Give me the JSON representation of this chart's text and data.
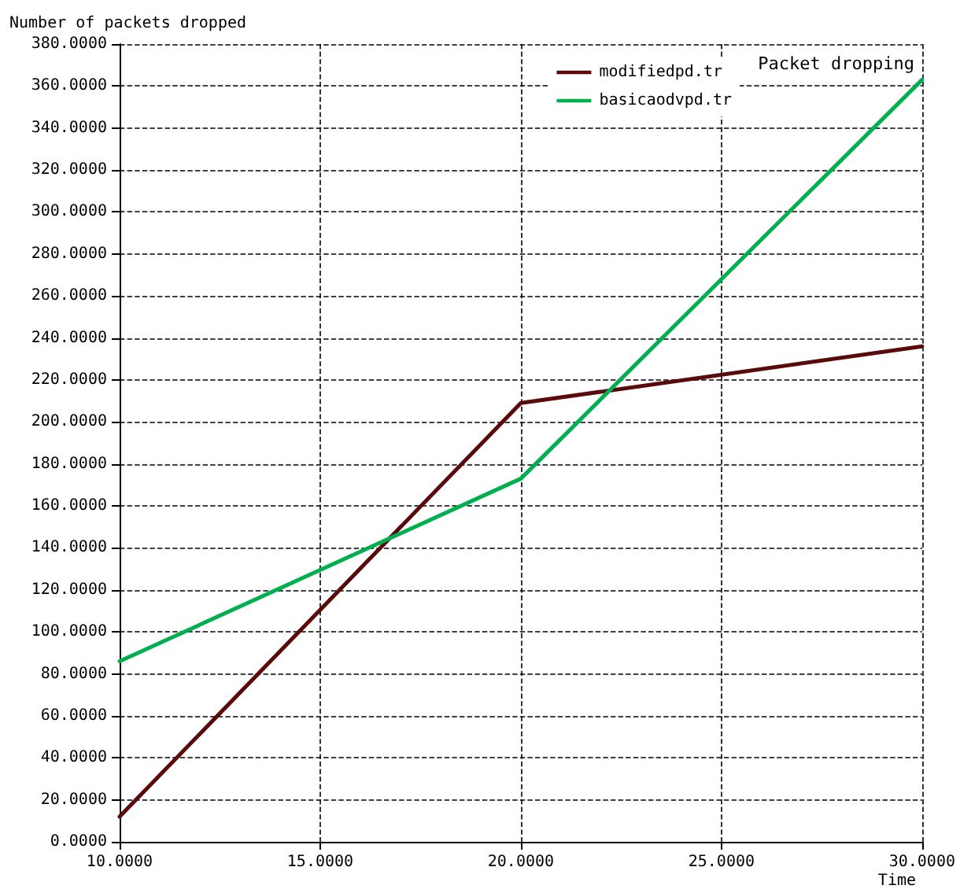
{
  "chart_data": {
    "type": "line",
    "title": "Packet dropping",
    "xlabel": "Time",
    "ylabel": "Number of packets dropped",
    "x": [
      10,
      20,
      30
    ],
    "series": [
      {
        "name": "modifiedpd.tr",
        "color": "#5a0a0a",
        "values": [
          12,
          209,
          236
        ]
      },
      {
        "name": "basicaodvpd.tr",
        "color": "#00b04f",
        "values": [
          86,
          173,
          363
        ]
      }
    ],
    "xlim": [
      10,
      30
    ],
    "xticks": [
      {
        "value": 10,
        "label": "10.0000"
      },
      {
        "value": 15,
        "label": "15.0000"
      },
      {
        "value": 20,
        "label": "20.0000"
      },
      {
        "value": 25,
        "label": "25.0000"
      },
      {
        "value": 30,
        "label": "30.0000"
      }
    ],
    "ylim": [
      0,
      380
    ],
    "yticks": [
      {
        "value": 0,
        "label": "0.0000"
      },
      {
        "value": 20,
        "label": "20.0000"
      },
      {
        "value": 40,
        "label": "40.0000"
      },
      {
        "value": 60,
        "label": "60.0000"
      },
      {
        "value": 80,
        "label": "80.0000"
      },
      {
        "value": 100,
        "label": "100.0000"
      },
      {
        "value": 120,
        "label": "120.0000"
      },
      {
        "value": 140,
        "label": "140.0000"
      },
      {
        "value": 160,
        "label": "160.0000"
      },
      {
        "value": 180,
        "label": "180.0000"
      },
      {
        "value": 200,
        "label": "200.0000"
      },
      {
        "value": 220,
        "label": "220.0000"
      },
      {
        "value": 240,
        "label": "240.0000"
      },
      {
        "value": 260,
        "label": "260.0000"
      },
      {
        "value": 280,
        "label": "280.0000"
      },
      {
        "value": 300,
        "label": "300.0000"
      },
      {
        "value": 320,
        "label": "320.0000"
      },
      {
        "value": 340,
        "label": "340.0000"
      },
      {
        "value": 360,
        "label": "360.0000"
      },
      {
        "value": 380,
        "label": "380.0000"
      }
    ],
    "grid": true,
    "legend": "top right",
    "marker": "none",
    "line_style": "solid"
  }
}
